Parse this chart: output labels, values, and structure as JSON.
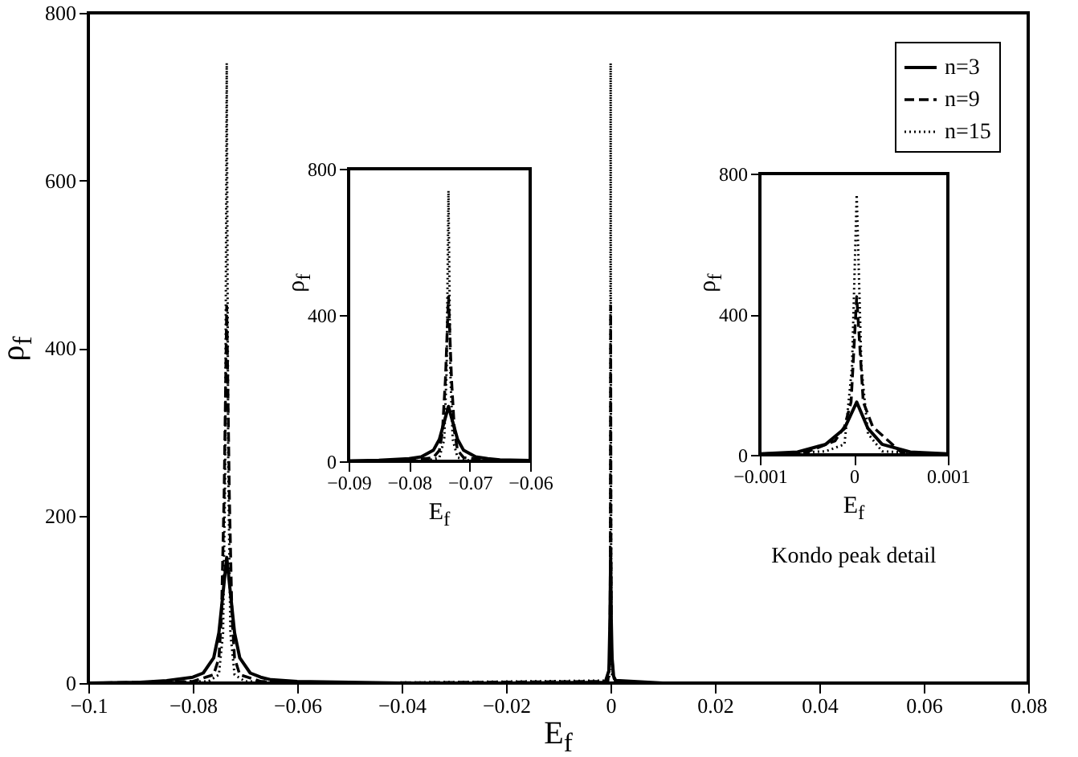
{
  "chart_data": [
    {
      "type": "line",
      "xlabel": "E$_{f}$",
      "ylabel": "ρ$_{f}$",
      "xlim": [
        -0.1,
        0.08
      ],
      "xticks": [
        -0.1,
        -0.08,
        -0.06,
        -0.04,
        -0.02,
        0,
        0.02,
        0.04,
        0.06,
        0.08
      ],
      "ylim": [
        0,
        800
      ],
      "yticks": [
        0,
        200,
        400,
        600,
        800
      ],
      "grid": false,
      "legend": "top right",
      "series": [
        {
          "name": "n=3",
          "color": "#000000",
          "line_style": "solid",
          "x": [
            -0.1,
            -0.09,
            -0.085,
            -0.08,
            -0.078,
            -0.076,
            -0.075,
            -0.074,
            -0.0735,
            -0.073,
            -0.072,
            -0.071,
            -0.069,
            -0.067,
            -0.065,
            -0.06,
            -0.04,
            -0.02,
            -0.001,
            -0.0003,
            -0.0001,
            3e-05,
            0.00015,
            0.0003,
            0.0006,
            0.001,
            0.01,
            0.08
          ],
          "values": [
            0,
            1,
            3,
            7,
            12,
            30,
            60,
            120,
            150,
            120,
            60,
            30,
            12,
            7,
            4,
            2,
            0,
            0,
            1,
            15,
            75,
            150,
            75,
            30,
            8,
            3,
            0,
            0
          ]
        },
        {
          "name": "n=9",
          "color": "#000000",
          "line_style": "dashed",
          "x": [
            -0.1,
            -0.08,
            -0.076,
            -0.075,
            -0.0745,
            -0.074,
            -0.0735,
            -0.073,
            -0.0725,
            -0.072,
            -0.071,
            -0.067,
            -0.05,
            -0.0005,
            -0.0001,
            -3e-05,
            3e-05,
            0.0001,
            0.0002,
            0.0005,
            0.001,
            0.01,
            0.08
          ],
          "values": [
            0,
            2,
            10,
            30,
            80,
            225,
            450,
            225,
            80,
            30,
            10,
            2,
            0,
            2,
            30,
            150,
            450,
            150,
            40,
            8,
            2,
            0,
            0
          ]
        },
        {
          "name": "n=15",
          "color": "#000000",
          "line_style": "dotted",
          "x": [
            -0.1,
            -0.077,
            -0.075,
            -0.0742,
            -0.0738,
            -0.0735,
            -0.0732,
            -0.0728,
            -0.072,
            -0.07,
            -0.05,
            -0.0003,
            -0.0001,
            -2e-05,
            3e-05,
            8e-05,
            0.00015,
            0.0003,
            0.001,
            0.01,
            0.08
          ],
          "values": [
            0,
            2,
            10,
            60,
            250,
            740,
            250,
            60,
            10,
            2,
            0,
            3,
            30,
            250,
            740,
            250,
            60,
            10,
            2,
            0,
            0
          ]
        }
      ]
    },
    {
      "type": "line",
      "xlabel": "E$_{f}$",
      "ylabel": "ρ$_{f}$",
      "xlim": [
        -0.09,
        -0.06
      ],
      "xticks": [
        -0.09,
        -0.08,
        -0.07,
        -0.06
      ],
      "ylim": [
        0,
        800
      ],
      "yticks": [
        0,
        400,
        800
      ],
      "grid": false,
      "series": [
        {
          "color": "#000000",
          "line_style": "solid",
          "x": [
            -0.09,
            -0.085,
            -0.08,
            -0.078,
            -0.076,
            -0.075,
            -0.074,
            -0.0735,
            -0.073,
            -0.072,
            -0.071,
            -0.069,
            -0.067,
            -0.065,
            -0.06
          ],
          "values": [
            1,
            3,
            7,
            12,
            30,
            60,
            120,
            150,
            120,
            60,
            30,
            12,
            7,
            4,
            2
          ]
        },
        {
          "color": "#000000",
          "line_style": "dashed",
          "x": [
            -0.09,
            -0.08,
            -0.076,
            -0.075,
            -0.0745,
            -0.074,
            -0.0735,
            -0.073,
            -0.0725,
            -0.072,
            -0.071,
            -0.067,
            -0.06
          ],
          "values": [
            0,
            2,
            10,
            30,
            80,
            225,
            450,
            225,
            80,
            30,
            10,
            2,
            0
          ]
        },
        {
          "color": "#000000",
          "line_style": "dotted",
          "x": [
            -0.09,
            -0.077,
            -0.075,
            -0.0742,
            -0.0738,
            -0.0735,
            -0.0732,
            -0.0728,
            -0.072,
            -0.07,
            -0.06
          ],
          "values": [
            0,
            2,
            10,
            60,
            250,
            740,
            250,
            60,
            10,
            2,
            0
          ]
        }
      ]
    },
    {
      "type": "line",
      "xlabel": "E$_{f}$",
      "ylabel": "ρ$_{f}$",
      "annotations": [
        "Kondo peak detail"
      ],
      "xlim": [
        -0.001,
        0.001
      ],
      "xticks": [
        -0.001,
        0,
        0.001
      ],
      "ylim": [
        0,
        800
      ],
      "yticks": [
        0,
        400,
        800
      ],
      "grid": false,
      "series": [
        {
          "color": "#000000",
          "line_style": "solid",
          "x": [
            -0.001,
            -0.0006,
            -0.0003,
            -0.0001,
            3e-05,
            0.00015,
            0.0003,
            0.0006,
            0.001
          ],
          "values": [
            3,
            8,
            30,
            75,
            150,
            75,
            30,
            8,
            3
          ]
        },
        {
          "color": "#000000",
          "line_style": "dashed",
          "x": [
            -0.001,
            -0.0005,
            -0.0002,
            -0.0001,
            -3e-05,
            3e-05,
            0.0001,
            0.0002,
            0.0005,
            0.001
          ],
          "values": [
            2,
            8,
            40,
            80,
            150,
            450,
            150,
            80,
            8,
            2
          ]
        },
        {
          "color": "#000000",
          "line_style": "dotted",
          "x": [
            -0.001,
            -0.0003,
            -0.0001,
            -2e-05,
            3e-05,
            8e-05,
            0.00015,
            0.0003,
            0.001
          ],
          "values": [
            2,
            10,
            30,
            250,
            740,
            250,
            60,
            10,
            2
          ]
        }
      ]
    }
  ]
}
